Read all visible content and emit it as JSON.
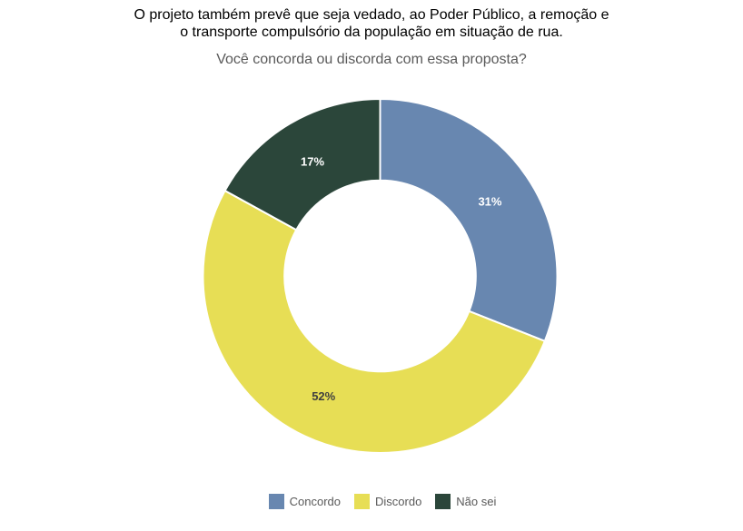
{
  "header": {
    "title_line1": "O projeto também prevê que seja vedado, ao Poder Público, a remoção e",
    "title_line2": "o transporte compulsório da população em situação de rua.",
    "subtitle": "Você concorda ou discorda com essa proposta?"
  },
  "chart_data": {
    "type": "pie",
    "variant": "donut",
    "title": "O projeto também prevê que seja vedado, ao Poder Público, a remoção e o transporte compulsório da população em situação de rua.",
    "subtitle": "Você concorda ou discorda com essa proposta?",
    "categories": [
      "Concordo",
      "Discordo",
      "Não sei"
    ],
    "values": [
      31,
      52,
      17
    ],
    "value_labels": [
      "31%",
      "52%",
      "17%"
    ],
    "slice_colors": [
      "#6887B0",
      "#E7DE55",
      "#2B463A"
    ],
    "slice_label_colors": [
      "#FFFFFF",
      "#3F3F3F",
      "#FFFFFF"
    ],
    "start_angle_deg": 0,
    "direction": "clockwise",
    "inner_radius_ratio": 0.54,
    "separator_color": "#FFFFFF",
    "legend_position": "bottom",
    "background": "#FFFFFF"
  }
}
